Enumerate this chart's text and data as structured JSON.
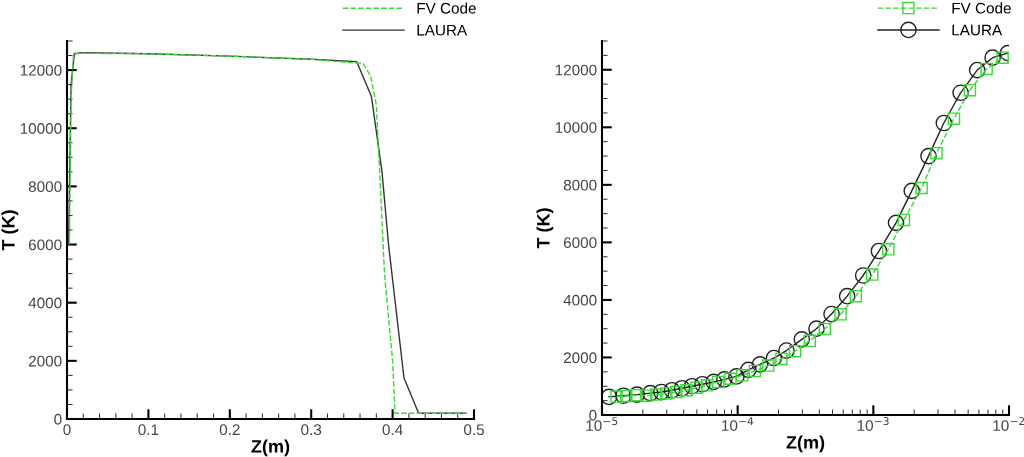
{
  "chart_data": [
    {
      "type": "line",
      "xlabel": "Z(m)",
      "ylabel": "T (K)",
      "xlim": [
        0,
        0.5
      ],
      "ylim": [
        0,
        13000
      ],
      "xticks": [
        0,
        0.1,
        0.2,
        0.3,
        0.4,
        0.5
      ],
      "yticks": [
        0,
        2000,
        4000,
        6000,
        8000,
        10000,
        12000
      ],
      "grid": false,
      "legend": "top right",
      "series": [
        {
          "name": "FV Code",
          "color": "#33dd33",
          "line_style": "dashed",
          "marker": "none",
          "x": [
            0.003,
            0.005,
            0.008,
            0.1,
            0.2,
            0.3,
            0.364,
            0.373,
            0.38,
            0.385,
            0.39,
            0.4,
            0.403,
            0.49
          ],
          "values": [
            6000,
            11000,
            12580,
            12560,
            12480,
            12370,
            12220,
            11800,
            10800,
            8000,
            5000,
            2000,
            200,
            200
          ]
        },
        {
          "name": "LAURA",
          "color": "#333333",
          "line_style": "solid",
          "marker": "none",
          "x": [
            0.002,
            0.005,
            0.009,
            0.017,
            0.1,
            0.2,
            0.3,
            0.356,
            0.374,
            0.387,
            0.395,
            0.414,
            0.432,
            0.49
          ],
          "values": [
            6000,
            11500,
            12550,
            12600,
            12560,
            12480,
            12370,
            12290,
            11090,
            8500,
            6000,
            1410,
            200,
            200
          ]
        }
      ]
    },
    {
      "type": "line",
      "log": "x",
      "xlabel": "Z(m)",
      "ylabel": "T (K)",
      "xlim": [
        1e-05,
        0.01
      ],
      "ylim": [
        0,
        13000
      ],
      "xticks": [
        {
          "value": 1e-05,
          "label": "10$^{−5}$"
        },
        {
          "value": 0.0001,
          "label": "10$^{−4}$"
        },
        {
          "value": 0.001,
          "label": "10$^{−3}$"
        },
        {
          "value": 0.01,
          "label": "10$^{−2}$"
        }
      ],
      "yticks": [
        0,
        2000,
        4000,
        6000,
        8000,
        10000,
        12000
      ],
      "grid": false,
      "legend": "top right",
      "series": [
        {
          "name": "FV Code",
          "color": "#33dd33",
          "line_style": "dashed",
          "marker": "square",
          "x": [
            1.28e-05,
            1.51e-05,
            1.79e-05,
            2.12e-05,
            2.52e-05,
            2.98e-05,
            3.53e-05,
            4.19e-05,
            4.97e-05,
            5.95e-05,
            7.18e-05,
            8.85e-05,
            0.000108,
            0.000134,
            0.000168,
            0.00021,
            0.000265,
            0.00034,
            0.000439,
            0.000573,
            0.000743,
            0.000981,
            0.00129,
            0.00168,
            0.00227,
            0.00292,
            0.00393,
            0.00515,
            0.00684,
            0.00897
          ],
          "values": [
            640,
            660,
            690,
            670,
            710,
            750,
            800,
            860,
            950,
            1030,
            1150,
            1260,
            1380,
            1530,
            1720,
            1950,
            2220,
            2580,
            2990,
            3500,
            4130,
            4880,
            5760,
            6780,
            7890,
            9100,
            10300,
            11290,
            12030,
            12420
          ]
        },
        {
          "name": "LAURA",
          "color": "#222222",
          "line_style": "solid",
          "marker": "circle",
          "x": [
            1.127e-05,
            1.44e-05,
            1.81e-05,
            2.27e-05,
            2.74e-05,
            3.28e-05,
            3.89e-05,
            4.61e-05,
            5.5e-05,
            6.66e-05,
            7.98e-05,
            9.79e-05,
            0.00012,
            0.000146,
            0.000185,
            0.000229,
            0.000297,
            0.000381,
            0.000492,
            0.000641,
            0.000842,
            0.0011,
            0.00147,
            0.00192,
            0.00255,
            0.00331,
            0.0044,
            0.00583,
            0.00757,
            0.00982
          ],
          "values": [
            630,
            670,
            710,
            760,
            800,
            860,
            930,
            1000,
            1070,
            1150,
            1240,
            1340,
            1570,
            1760,
            1980,
            2240,
            2630,
            3000,
            3510,
            4130,
            4850,
            5700,
            6680,
            7790,
            9000,
            10150,
            11200,
            11990,
            12420,
            12580
          ]
        }
      ]
    }
  ]
}
